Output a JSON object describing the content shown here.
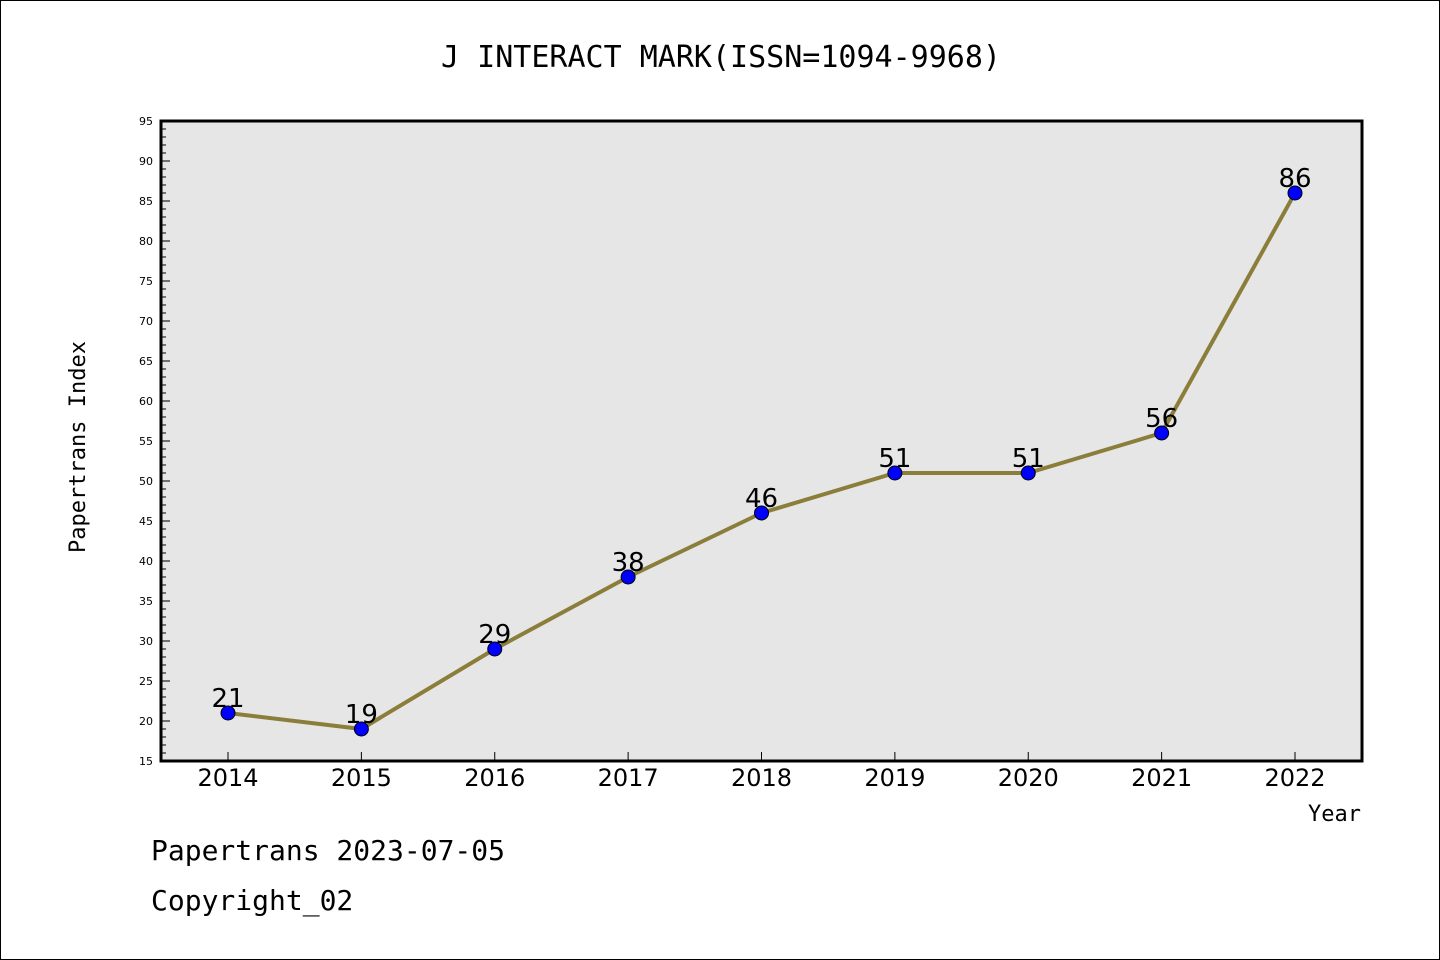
{
  "chart_data": {
    "type": "line",
    "title": "J INTERACT MARK(ISSN=1094-9968)",
    "xlabel": "Year",
    "ylabel": "Papertrans Index",
    "categories": [
      "2014",
      "2015",
      "2016",
      "2017",
      "2018",
      "2019",
      "2020",
      "2021",
      "2022"
    ],
    "series": [
      {
        "values": [
          21,
          19,
          29,
          38,
          46,
          51,
          51,
          56,
          86
        ]
      }
    ],
    "data_labels": [
      "21",
      "19",
      "29",
      "38",
      "46",
      "51",
      "51",
      "56",
      "86"
    ],
    "ylim": [
      15,
      95
    ],
    "yticks": [
      15,
      20,
      25,
      30,
      35,
      40,
      45,
      50,
      55,
      60,
      65,
      70,
      75,
      80,
      85,
      90,
      95
    ],
    "grid": false,
    "legend": "none",
    "colors": {
      "line": "#8b7d3a",
      "marker": "#0000ff",
      "plot_background": "#e6e6e6"
    }
  },
  "footer": {
    "line1": "Papertrans 2023-07-05",
    "line2": "Copyright_02"
  }
}
